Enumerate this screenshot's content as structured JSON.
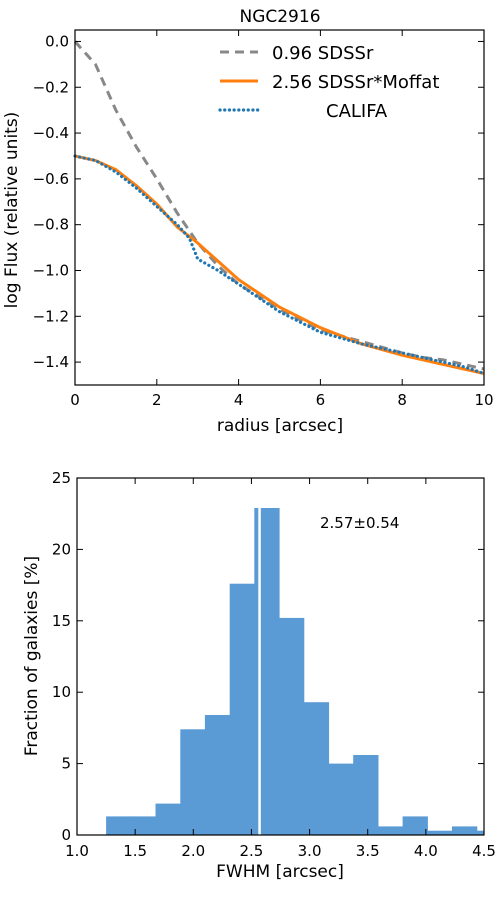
{
  "chart_data": [
    {
      "type": "line",
      "title": "NGC2916",
      "xlabel": "radius [arcsec]",
      "ylabel": "log Flux (relative units)",
      "xlim": [
        0,
        10
      ],
      "ylim": [
        -1.5,
        0.05
      ],
      "xticks": [
        0,
        2,
        4,
        6,
        8,
        10
      ],
      "yticks": [
        -1.4,
        -1.2,
        -1.0,
        -0.8,
        -0.6,
        -0.4,
        -0.2,
        0.0
      ],
      "ytick_labels": [
        "−1.4",
        "−1.2",
        "−1.0",
        "−0.8",
        "−0.6",
        "−0.4",
        "−0.2",
        "0.0"
      ],
      "legend_position": "top-right",
      "series": [
        {
          "name": "0.96 SDSSr",
          "style": "dashed",
          "color": "#888888",
          "x": [
            0,
            0.5,
            1.0,
            1.5,
            2.0,
            2.5,
            3.0,
            3.5,
            4.0,
            5.0,
            6.0,
            7.0,
            8.0,
            8.5,
            9.0,
            9.5,
            10.0
          ],
          "y": [
            0.0,
            -0.1,
            -0.3,
            -0.46,
            -0.6,
            -0.75,
            -0.88,
            -0.98,
            -1.06,
            -1.17,
            -1.26,
            -1.31,
            -1.36,
            -1.38,
            -1.39,
            -1.41,
            -1.43
          ]
        },
        {
          "name": "2.56 SDSSr*Moffat",
          "style": "solid",
          "color": "#ff7f0e",
          "x": [
            0,
            0.5,
            1.0,
            1.5,
            2.0,
            2.5,
            3.0,
            3.5,
            4.0,
            4.5,
            5.0,
            6.0,
            7.0,
            8.0,
            9.0,
            10.0
          ],
          "y": [
            -0.5,
            -0.52,
            -0.56,
            -0.63,
            -0.71,
            -0.81,
            -0.88,
            -0.96,
            -1.04,
            -1.1,
            -1.16,
            -1.25,
            -1.32,
            -1.37,
            -1.41,
            -1.45
          ]
        },
        {
          "name": "CALIFA",
          "style": "dotted",
          "color": "#1f77b4",
          "x": [
            0,
            0.5,
            1.0,
            1.5,
            2.0,
            2.5,
            2.8,
            3.0,
            3.5,
            4.0,
            4.5,
            5.0,
            6.0,
            7.0,
            7.5,
            8.0,
            8.5,
            9.0,
            9.5,
            10.0
          ],
          "y": [
            -0.5,
            -0.52,
            -0.57,
            -0.64,
            -0.72,
            -0.8,
            -0.86,
            -0.95,
            -1.0,
            -1.06,
            -1.12,
            -1.18,
            -1.27,
            -1.32,
            -1.34,
            -1.36,
            -1.38,
            -1.4,
            -1.42,
            -1.45
          ]
        }
      ]
    },
    {
      "type": "bar",
      "title": "",
      "xlabel": "FWHM [arcsec]",
      "ylabel": "Fraction of galaxies [%]",
      "xlim": [
        1.0,
        4.5
      ],
      "ylim": [
        0,
        25
      ],
      "xticks": [
        1.0,
        1.5,
        2.0,
        2.5,
        3.0,
        3.5,
        4.0,
        4.5
      ],
      "xtick_labels": [
        "1.0",
        "1.5",
        "2.0",
        "2.5",
        "3.0",
        "3.5",
        "4.0",
        "4.5"
      ],
      "yticks": [
        0,
        5,
        10,
        15,
        20,
        25
      ],
      "color": "#5b9bd5",
      "bin_edges": [
        1.25,
        1.463,
        1.675,
        1.888,
        2.1,
        2.313,
        2.525,
        2.738,
        2.95,
        3.163,
        3.375,
        3.588,
        3.8,
        4.013,
        4.225,
        4.438,
        4.65
      ],
      "values": [
        1.3,
        1.3,
        2.2,
        7.4,
        8.4,
        17.6,
        22.9,
        15.2,
        9.3,
        5.0,
        5.6,
        0.6,
        1.3,
        0.3,
        0.6,
        0.3
      ],
      "annotation": "2.57±0.54",
      "median_line": 2.57
    }
  ]
}
